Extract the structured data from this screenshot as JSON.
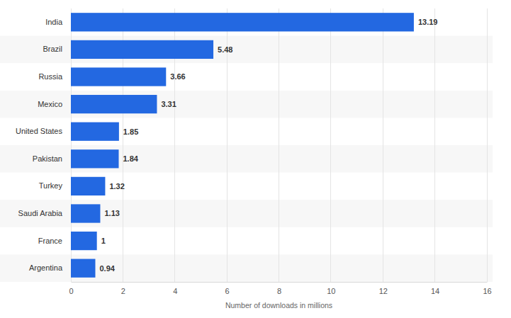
{
  "chart_data": {
    "type": "bar",
    "orientation": "horizontal",
    "categories": [
      "India",
      "Brazil",
      "Russia",
      "Mexico",
      "United States",
      "Pakistan",
      "Turkey",
      "Saudi Arabia",
      "France",
      "Argentina"
    ],
    "values": [
      13.19,
      5.48,
      3.66,
      3.31,
      1.85,
      1.84,
      1.32,
      1.13,
      1,
      0.94
    ],
    "color": "#2368e1",
    "xlabel": "Number of downloads in millions",
    "xlim": [
      0,
      16
    ],
    "xticks": [
      0,
      2,
      4,
      6,
      8,
      10,
      12,
      14,
      16
    ],
    "grid": true,
    "data_labels": true
  }
}
